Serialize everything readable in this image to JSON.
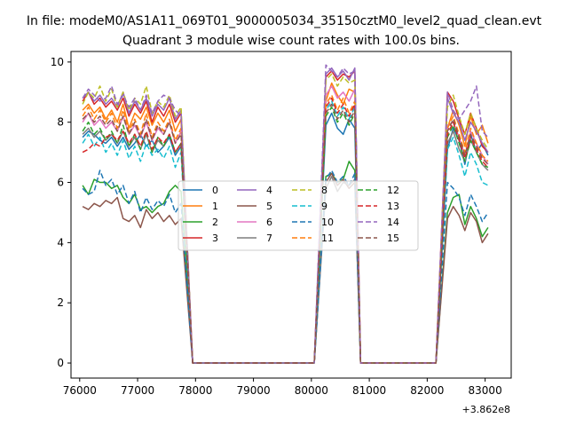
{
  "chart_data": {
    "type": "line",
    "suptitle": "In file: modeM0/AS1A11_069T01_9000005034_35150cztM0_level2_quad_clean.evt",
    "title": "Quadrant 3 module wise count rates with 100.0s bins.",
    "xlabel": "",
    "ylabel": "",
    "x_offset_label": "+3.862e8",
    "xlim": [
      75850,
      83450
    ],
    "ylim": [
      -0.5,
      10.35
    ],
    "xticks": [
      76000,
      77000,
      78000,
      79000,
      80000,
      81000,
      82000,
      83000
    ],
    "xtick_labels": [
      "76000",
      "77000",
      "78000",
      "79000",
      "80000",
      "81000",
      "82000",
      "83000"
    ],
    "yticks": [
      0,
      2,
      4,
      6,
      8,
      10
    ],
    "ytick_labels": [
      "0",
      "2",
      "4",
      "6",
      "8",
      "10"
    ],
    "grid": false,
    "legend": {
      "placement": "center",
      "ncol": 4
    },
    "segments": [
      {
        "start": 76050,
        "n": 18,
        "step": 100
      },
      {
        "start": 80250,
        "n": 6,
        "step": 100
      },
      {
        "start": 82350,
        "n": 8,
        "step": 100
      }
    ],
    "zero_points": [
      [
        77950,
        78050,
        78150,
        78250,
        78350,
        78450,
        78550,
        78650,
        78750,
        78850,
        78950,
        79050,
        79150,
        79250,
        79350,
        79450,
        79550,
        79650,
        79750,
        79850,
        79950,
        80050
      ],
      [
        80850,
        80950,
        81050,
        81150,
        81250,
        81350,
        81450,
        81550,
        81650,
        81750,
        81850,
        81950,
        82050,
        82150
      ]
    ],
    "series": [
      {
        "name": "0",
        "color": "#1f77b4",
        "dash": "",
        "values": [
          [
            7.5,
            7.7,
            7.6,
            7.4,
            7.3,
            7.5,
            7.2,
            7.5,
            7.1,
            7.3,
            7.6,
            7.2,
            7.4,
            7.0,
            7.2,
            7.5,
            6.9,
            7.2
          ],
          [
            7.9,
            8.3,
            7.8,
            7.6,
            8.1,
            7.8
          ],
          [
            7.1,
            7.8,
            7.4,
            6.6,
            7.6,
            7.0,
            7.3,
            6.9
          ]
        ]
      },
      {
        "name": "1",
        "color": "#ff7f0e",
        "dash": "",
        "values": [
          [
            8.4,
            8.6,
            8.3,
            8.5,
            8.1,
            8.4,
            8.0,
            8.6,
            7.8,
            8.3,
            8.1,
            8.5,
            7.9,
            8.3,
            8.0,
            8.4,
            7.7,
            8.1
          ],
          [
            8.7,
            9.3,
            8.9,
            8.6,
            9.1,
            9.0
          ],
          [
            7.8,
            8.4,
            7.9,
            7.2,
            8.2,
            7.6,
            7.9,
            7.3
          ]
        ]
      },
      {
        "name": "2",
        "color": "#2ca02c",
        "dash": "",
        "values": [
          [
            5.9,
            5.6,
            6.1,
            6.0,
            6.0,
            5.8,
            5.9,
            5.5,
            5.3,
            5.6,
            5.1,
            5.2,
            5.0,
            5.2,
            5.3,
            5.7,
            5.9,
            5.7
          ],
          [
            6.2,
            6.3,
            6.0,
            6.1,
            6.7,
            6.4
          ],
          [
            5.0,
            5.5,
            5.6,
            4.6,
            5.2,
            4.8,
            4.2,
            4.5
          ]
        ]
      },
      {
        "name": "3",
        "color": "#d62728",
        "dash": "",
        "values": [
          [
            8.7,
            9.0,
            8.6,
            8.8,
            8.5,
            8.7,
            8.4,
            8.8,
            8.2,
            8.6,
            8.3,
            8.7,
            8.0,
            8.5,
            8.2,
            8.6,
            8.0,
            8.3
          ],
          [
            9.5,
            9.7,
            9.4,
            9.6,
            9.5,
            9.7
          ],
          [
            9.0,
            8.7,
            8.1,
            7.6,
            8.3,
            7.8,
            7.2,
            7.0
          ]
        ]
      },
      {
        "name": "4",
        "color": "#9467bd",
        "dash": "",
        "values": [
          [
            8.8,
            9.0,
            8.7,
            8.9,
            8.6,
            8.8,
            8.5,
            9.0,
            8.3,
            8.7,
            8.4,
            8.8,
            8.2,
            8.6,
            8.4,
            8.8,
            8.1,
            8.4
          ],
          [
            9.6,
            9.8,
            9.5,
            9.7,
            9.4,
            9.8
          ],
          [
            8.8,
            8.3,
            8.0,
            7.4,
            8.0,
            7.7,
            7.3,
            7.0
          ]
        ]
      },
      {
        "name": "5",
        "color": "#8c564b",
        "dash": "",
        "values": [
          [
            5.2,
            5.1,
            5.3,
            5.2,
            5.4,
            5.3,
            5.5,
            4.8,
            4.7,
            4.9,
            4.5,
            5.1,
            4.8,
            5.0,
            4.7,
            4.9,
            4.6,
            4.8
          ],
          [
            6.0,
            6.3,
            5.9,
            6.1,
            5.8,
            6.0
          ],
          [
            4.8,
            5.2,
            4.9,
            4.4,
            5.0,
            4.7,
            4.0,
            4.3
          ]
        ]
      },
      {
        "name": "6",
        "color": "#e377c2",
        "dash": "",
        "values": [
          [
            8.0,
            8.3,
            7.9,
            8.1,
            7.8,
            8.0,
            7.7,
            8.2,
            7.6,
            7.9,
            7.5,
            8.0,
            7.4,
            7.8,
            7.6,
            8.0,
            7.3,
            7.7
          ],
          [
            8.9,
            9.2,
            8.8,
            9.0,
            8.7,
            9.1
          ],
          [
            7.9,
            8.0,
            7.5,
            6.9,
            7.7,
            7.3,
            6.9,
            6.6
          ]
        ]
      },
      {
        "name": "7",
        "color": "#7f7f7f",
        "dash": "",
        "values": [
          [
            7.6,
            7.8,
            7.5,
            7.7,
            7.4,
            7.6,
            7.3,
            7.7,
            7.2,
            7.5,
            7.1,
            7.6,
            7.0,
            7.4,
            7.2,
            7.6,
            7.0,
            7.3
          ],
          [
            5.8,
            6.2,
            5.7,
            6.0,
            5.9,
            6.1
          ],
          [
            7.3,
            7.7,
            7.1,
            6.7,
            7.4,
            7.0,
            6.6,
            6.4
          ]
        ]
      },
      {
        "name": "8",
        "color": "#bcbd22",
        "dash": "6,3",
        "values": [
          [
            8.6,
            9.0,
            8.8,
            9.2,
            8.7,
            9.1,
            8.5,
            9.0,
            8.4,
            8.8,
            8.6,
            9.2,
            8.3,
            8.7,
            8.5,
            8.9,
            8.2,
            8.5
          ],
          [
            9.4,
            9.6,
            9.2,
            9.5,
            9.3,
            9.4
          ],
          [
            8.5,
            8.9,
            8.2,
            7.6,
            8.3,
            7.8,
            7.4,
            7.1
          ]
        ]
      },
      {
        "name": "9",
        "color": "#17becf",
        "dash": "6,3",
        "values": [
          [
            7.3,
            7.6,
            7.2,
            7.5,
            7.0,
            7.3,
            6.9,
            7.4,
            6.8,
            7.2,
            6.7,
            7.3,
            6.9,
            7.1,
            6.8,
            7.2,
            6.5,
            7.0
          ],
          [
            8.4,
            8.7,
            8.2,
            8.5,
            8.1,
            8.5
          ],
          [
            7.1,
            7.5,
            6.9,
            6.2,
            7.0,
            6.6,
            6.0,
            5.9
          ]
        ]
      },
      {
        "name": "10",
        "color": "#1f77b4",
        "dash": "6,3",
        "values": [
          [
            5.8,
            5.6,
            5.7,
            6.4,
            5.9,
            6.1,
            5.6,
            5.9,
            5.3,
            5.7,
            5.0,
            5.5,
            5.1,
            5.4,
            5.2,
            5.6,
            5.0,
            5.3
          ],
          [
            6.1,
            6.4,
            6.0,
            6.2,
            5.9,
            6.3
          ],
          [
            6.0,
            5.8,
            5.5,
            4.9,
            5.6,
            5.2,
            4.7,
            5.0
          ]
        ]
      },
      {
        "name": "11",
        "color": "#ff7f0e",
        "dash": "6,3",
        "values": [
          [
            8.2,
            8.5,
            8.1,
            8.4,
            8.0,
            8.3,
            7.8,
            8.4,
            7.7,
            8.1,
            7.6,
            8.3,
            7.5,
            8.0,
            7.7,
            8.1,
            7.4,
            7.8
          ],
          [
            8.6,
            8.9,
            8.4,
            8.8,
            8.3,
            8.7
          ],
          [
            7.8,
            8.2,
            7.6,
            7.0,
            7.8,
            7.3,
            6.9,
            6.7
          ]
        ]
      },
      {
        "name": "12",
        "color": "#2ca02c",
        "dash": "6,3",
        "values": [
          [
            7.7,
            8.0,
            7.6,
            7.8,
            7.4,
            7.7,
            7.3,
            7.9,
            7.2,
            7.6,
            7.1,
            7.7,
            7.0,
            7.5,
            7.2,
            7.6,
            7.0,
            7.3
          ],
          [
            8.2,
            8.5,
            8.0,
            8.3,
            7.9,
            8.3
          ],
          [
            7.5,
            7.9,
            7.3,
            6.7,
            7.4,
            7.0,
            6.6,
            6.5
          ]
        ]
      },
      {
        "name": "13",
        "color": "#d62728",
        "dash": "6,3",
        "values": [
          [
            7.0,
            7.1,
            7.3,
            7.2,
            7.5,
            7.6,
            7.4,
            7.7,
            7.3,
            7.6,
            7.2,
            7.7,
            7.1,
            7.5,
            7.3,
            7.6,
            7.0,
            7.3
          ],
          [
            8.5,
            8.8,
            8.3,
            8.6,
            8.2,
            8.6
          ],
          [
            7.6,
            8.0,
            7.4,
            6.8,
            7.5,
            7.1,
            6.7,
            6.5
          ]
        ]
      },
      {
        "name": "14",
        "color": "#9467bd",
        "dash": "6,3",
        "values": [
          [
            8.8,
            9.1,
            8.9,
            8.7,
            8.8,
            9.2,
            8.6,
            8.9,
            8.5,
            8.8,
            8.4,
            8.9,
            8.3,
            8.7,
            8.9,
            8.8,
            8.4,
            8.2
          ],
          [
            9.9,
            9.7,
            9.5,
            9.8,
            9.6,
            9.7
          ],
          [
            9.0,
            8.4,
            8.1,
            8.4,
            8.7,
            9.2,
            7.7,
            7.5
          ]
        ]
      },
      {
        "name": "15",
        "color": "#8c564b",
        "dash": "6,3",
        "values": [
          [
            8.1,
            8.3,
            8.0,
            8.2,
            7.9,
            8.1,
            7.7,
            8.2,
            7.6,
            8.0,
            7.5,
            8.1,
            7.4,
            7.9,
            7.6,
            8.0,
            7.3,
            7.6
          ],
          [
            8.3,
            8.6,
            8.1,
            8.4,
            8.0,
            8.4
          ],
          [
            7.7,
            8.1,
            7.5,
            6.9,
            7.6,
            7.2,
            6.8,
            6.6
          ]
        ]
      }
    ]
  }
}
